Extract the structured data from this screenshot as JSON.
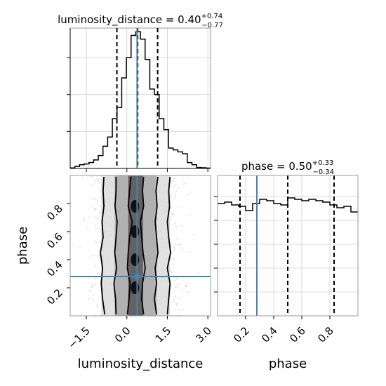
{
  "chart_data": [
    {
      "type": "histogram",
      "panel": "luminosity_distance-marginal",
      "title": {
        "label": "luminosity_distance = 0.40",
        "plus": "+0.74",
        "minus": "−0.77"
      },
      "xlim": [
        -2.1,
        3.1
      ],
      "grid": true,
      "bin_edges": [
        -2.1,
        -1.926,
        -1.753,
        -1.579,
        -1.406,
        -1.232,
        -1.059,
        -0.885,
        -0.712,
        -0.538,
        -0.365,
        -0.191,
        -0.018,
        0.156,
        0.329,
        0.503,
        0.676,
        0.85,
        1.023,
        1.197,
        1.37,
        1.544,
        1.717,
        1.891,
        2.064,
        2.238,
        2.411,
        2.585,
        2.758,
        2.932,
        3.1
      ],
      "counts": [
        0.3,
        1.1,
        2.0,
        2.4,
        3.2,
        4.6,
        7.0,
        12.0,
        17.0,
        27.0,
        33.0,
        49.0,
        60.0,
        72.0,
        74.0,
        70.0,
        59.0,
        43.0,
        40.0,
        27.0,
        21.0,
        11.0,
        10.0,
        9.0,
        8.0,
        3.2,
        2.0,
        0.5,
        0.4,
        0.2
      ],
      "quantiles": [
        -0.37,
        0.4,
        1.14
      ],
      "truth": 0.38
    },
    {
      "type": "histogram",
      "panel": "phase-marginal",
      "title": {
        "label": "phase = 0.50",
        "plus": "+0.33",
        "minus": "−0.34"
      },
      "xlim": [
        0.0,
        1.0
      ],
      "grid": true,
      "bin_edges": [
        0.0,
        0.05,
        0.1,
        0.15,
        0.2,
        0.25,
        0.3,
        0.35,
        0.4,
        0.45,
        0.5,
        0.55,
        0.6,
        0.65,
        0.7,
        0.75,
        0.8,
        0.85,
        0.9,
        0.95,
        1.0
      ],
      "counts": [
        80,
        81,
        79,
        78,
        75,
        80,
        83,
        82,
        80,
        79,
        84,
        83,
        82,
        83,
        82,
        81,
        79,
        77,
        78,
        74
      ],
      "quantiles": [
        0.16,
        0.5,
        0.83
      ],
      "truth": 0.28
    },
    {
      "type": "scatter",
      "panel": "2d-posterior",
      "xlim": [
        -2.1,
        3.1
      ],
      "ylim": [
        0.0,
        1.0
      ],
      "x_ticks": [
        "−1.5",
        "0.0",
        "1.5",
        "3.0"
      ],
      "x_tick_values": [
        -1.5,
        0.0,
        1.5,
        3.0
      ],
      "y_ticks": [
        "0.2",
        "0.4",
        "0.6",
        "0.8"
      ],
      "y_tick_values": [
        0.2,
        0.4,
        0.6,
        0.8
      ],
      "xlabel": "luminosity_distance",
      "ylabel": "phase",
      "truth": {
        "x": 0.38,
        "y": 0.28
      },
      "contours": [
        {
          "level": "outer",
          "x": [
            -0.82,
            -0.9,
            -0.95,
            -0.9,
            -0.98,
            -0.88,
            -0.92,
            -0.85,
            -0.88,
            -0.85
          ]
        },
        {
          "level": "mid",
          "x": [
            -0.4,
            -0.42,
            -0.48,
            -0.38,
            -0.45,
            -0.4,
            -0.36,
            -0.44,
            -0.4,
            -0.4
          ]
        },
        {
          "level": "inner-left",
          "x": [
            0.02,
            0.08,
            0.12,
            0.02,
            0.05,
            0.1,
            0.2,
            0.05,
            0.1,
            0.15
          ]
        },
        {
          "level": "inner-right",
          "x": [
            0.62,
            0.55,
            0.58,
            0.68,
            0.6,
            0.55,
            0.5,
            0.62,
            0.58,
            0.62
          ]
        },
        {
          "level": "mid-right",
          "x": [
            1.1,
            1.02,
            1.1,
            1.05,
            1.15,
            1.1,
            1.05,
            1.12,
            1.08,
            1.15
          ]
        },
        {
          "level": "outer-right",
          "x": [
            1.5,
            1.55,
            1.6,
            1.5,
            1.62,
            1.55,
            1.5,
            1.58,
            1.55,
            1.6
          ]
        }
      ],
      "contour_y": [
        0.01,
        0.12,
        0.23,
        0.34,
        0.45,
        0.56,
        0.67,
        0.78,
        0.89,
        0.99
      ]
    },
    {
      "type": "histogram",
      "panel": "phase-marginal-x-ticks",
      "x_ticks": [
        "0.2",
        "0.4",
        "0.6",
        "0.8"
      ],
      "x_tick_values": [
        0.2,
        0.4,
        0.6,
        0.8
      ],
      "xlabel": "phase"
    }
  ]
}
